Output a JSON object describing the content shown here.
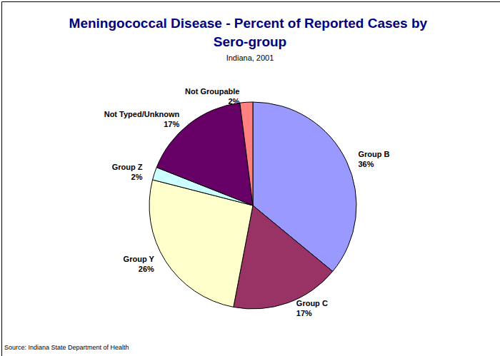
{
  "chart_data": {
    "type": "pie",
    "title": "Meningococcal Disease - Percent of Reported Cases by Sero-group",
    "subtitle": "Indiana, 2001",
    "source": "Source: Indiana State Department of Health",
    "categories": [
      "Group B",
      "Group C",
      "Group Y",
      "Group Z",
      "Not Typed/Unknown",
      "Not Groupable"
    ],
    "values": [
      36,
      17,
      26,
      2,
      17,
      2
    ],
    "value_labels": [
      "36%",
      "17%",
      "26%",
      "2%",
      "17%",
      "2%"
    ],
    "colors": [
      "#9999ff",
      "#993366",
      "#ffffcc",
      "#ccffff",
      "#660066",
      "#ff8080"
    ],
    "data_labels": true
  }
}
